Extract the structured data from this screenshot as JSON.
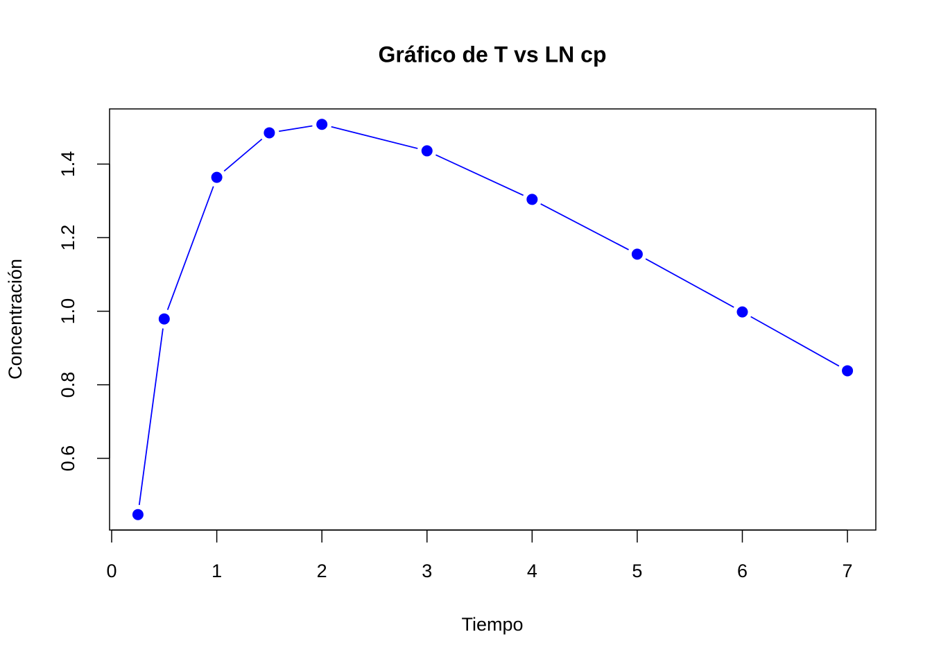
{
  "chart_data": {
    "type": "line",
    "title": "Gráfico de T vs LN cp",
    "xlabel": "Tiempo",
    "ylabel": "Concentración",
    "x": [
      0.25,
      0.5,
      1,
      1.5,
      2,
      3,
      4,
      5,
      6,
      7
    ],
    "values": [
      0.447,
      0.979,
      1.364,
      1.485,
      1.508,
      1.436,
      1.304,
      1.155,
      0.998,
      0.838
    ],
    "color": "#0000ff",
    "xlim": [
      -0.02,
      7.27
    ],
    "ylim": [
      0.405,
      1.55
    ],
    "xticks": [
      0,
      1,
      2,
      3,
      4,
      5,
      6,
      7
    ],
    "yticks": [
      0.6,
      0.8,
      {
        "value": 1,
        "label": "1.0"
      },
      1.2,
      1.4
    ]
  }
}
